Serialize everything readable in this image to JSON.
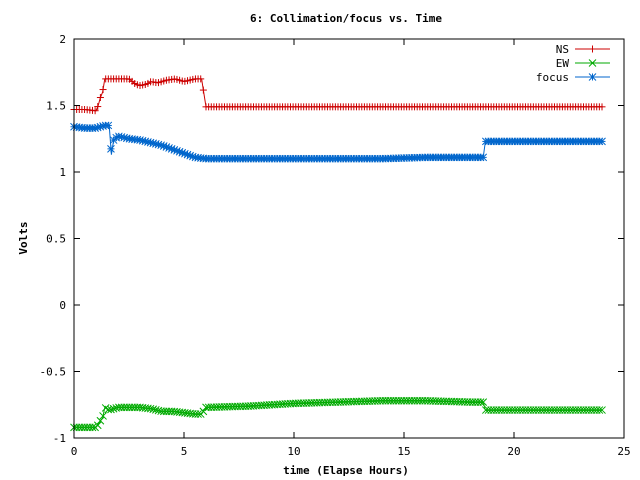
{
  "chart_data": {
    "type": "line",
    "title": "6: Collimation/focus vs. Time",
    "xlabel": "time (Elapse Hours)",
    "ylabel": "Volts",
    "xlim": [
      0,
      25
    ],
    "ylim": [
      -1,
      2
    ],
    "xticks": [
      0,
      5,
      10,
      15,
      20,
      25
    ],
    "yticks": [
      -1,
      -0.5,
      0,
      0.5,
      1,
      1.5,
      2
    ],
    "xtick_labels": [
      "0",
      "5",
      "10",
      "15",
      "20",
      "25"
    ],
    "ytick_labels": [
      "-1",
      "-0.5",
      "0",
      "0.5",
      "1",
      "1.5",
      "2"
    ],
    "grid": false,
    "legend": "top-right",
    "series": [
      {
        "name": "NS",
        "color": "#cc0000",
        "marker": "plus",
        "x": [
          0,
          0.5,
          1.0,
          1.1,
          1.2,
          1.3,
          1.4,
          1.6,
          2.5,
          2.8,
          3.0,
          3.3,
          3.5,
          3.8,
          4.2,
          4.6,
          5.0,
          5.5,
          5.8,
          6.0,
          8,
          10,
          12,
          14,
          16,
          18,
          20,
          22,
          24
        ],
        "y": [
          1.47,
          1.47,
          1.46,
          1.5,
          1.56,
          1.6,
          1.7,
          1.7,
          1.7,
          1.66,
          1.65,
          1.66,
          1.68,
          1.67,
          1.69,
          1.7,
          1.68,
          1.7,
          1.7,
          1.49,
          1.49,
          1.49,
          1.49,
          1.49,
          1.49,
          1.49,
          1.49,
          1.49,
          1.49
        ]
      },
      {
        "name": "EW",
        "color": "#00aa00",
        "marker": "cross",
        "x": [
          0,
          0.5,
          1.0,
          1.1,
          1.2,
          1.3,
          1.4,
          1.6,
          2.0,
          3.0,
          3.5,
          4.0,
          4.5,
          5.0,
          5.5,
          5.8,
          6.0,
          8,
          10,
          12,
          14,
          16,
          18,
          18.6,
          18.7,
          20,
          22,
          24
        ],
        "y": [
          -0.92,
          -0.92,
          -0.92,
          -0.9,
          -0.87,
          -0.85,
          -0.77,
          -0.79,
          -0.77,
          -0.77,
          -0.78,
          -0.8,
          -0.8,
          -0.81,
          -0.82,
          -0.82,
          -0.77,
          -0.76,
          -0.74,
          -0.73,
          -0.72,
          -0.72,
          -0.73,
          -0.73,
          -0.79,
          -0.79,
          -0.79,
          -0.79
        ]
      },
      {
        "name": "focus",
        "color": "#0066cc",
        "marker": "star",
        "x": [
          0,
          0.5,
          1.0,
          1.2,
          1.4,
          1.6,
          1.7,
          1.8,
          2.0,
          2.5,
          3.0,
          3.5,
          4.0,
          4.5,
          5.0,
          5.5,
          6.0,
          8,
          10,
          12,
          14,
          16,
          18,
          18.6,
          18.7,
          20,
          22,
          24
        ],
        "y": [
          1.34,
          1.33,
          1.33,
          1.34,
          1.35,
          1.35,
          1.13,
          1.24,
          1.27,
          1.25,
          1.24,
          1.22,
          1.2,
          1.17,
          1.14,
          1.11,
          1.1,
          1.1,
          1.1,
          1.1,
          1.1,
          1.11,
          1.11,
          1.11,
          1.23,
          1.23,
          1.23,
          1.23
        ]
      }
    ]
  }
}
